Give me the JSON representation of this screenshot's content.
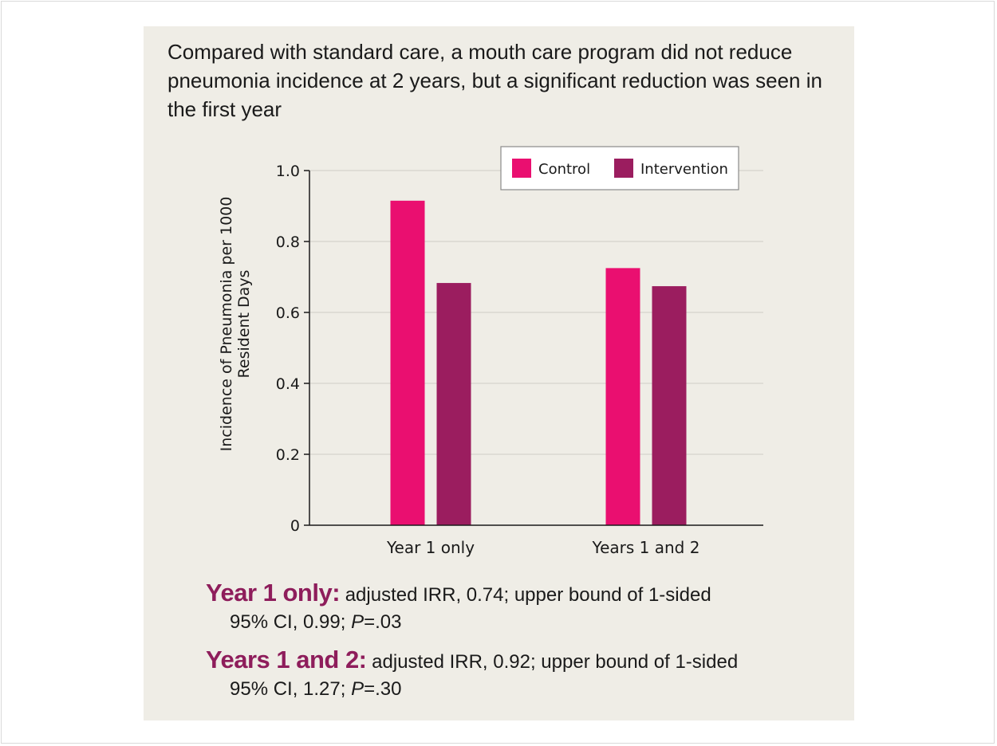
{
  "headline": "Compared with standard care, a mouth care program did not reduce pneumonia incidence at 2 years, but a significant reduction was seen in the first year",
  "chart_data": {
    "type": "bar",
    "categories": [
      "Year 1 only",
      "Years 1 and 2"
    ],
    "series": [
      {
        "name": "Control",
        "values": [
          0.915,
          0.725
        ],
        "color": "#ea0f70"
      },
      {
        "name": "Intervention",
        "values": [
          0.683,
          0.674
        ],
        "color": "#9b1d5f"
      }
    ],
    "ylabel_lines": [
      "Incidence of Pneumonia per 1000",
      "Resident Days"
    ],
    "ylim": [
      0,
      1.0
    ],
    "yticks": [
      "0",
      "0.2",
      "0.4",
      "0.6",
      "0.8",
      "1.0"
    ],
    "grid": true,
    "legend_position": "top-right"
  },
  "notes": [
    {
      "key": "Year 1 only:",
      "line1": " adjusted IRR, 0.74; upper bound of 1-sided",
      "line2_pre": "95% CI, 0.99; ",
      "p_label": "P",
      "line2_post": "=.03"
    },
    {
      "key": "Years 1 and 2:",
      "line1": " adjusted IRR, 0.92; upper bound of 1-sided",
      "line2_pre": "95% CI, 1.27; ",
      "p_label": "P",
      "line2_post": "=.30"
    }
  ]
}
